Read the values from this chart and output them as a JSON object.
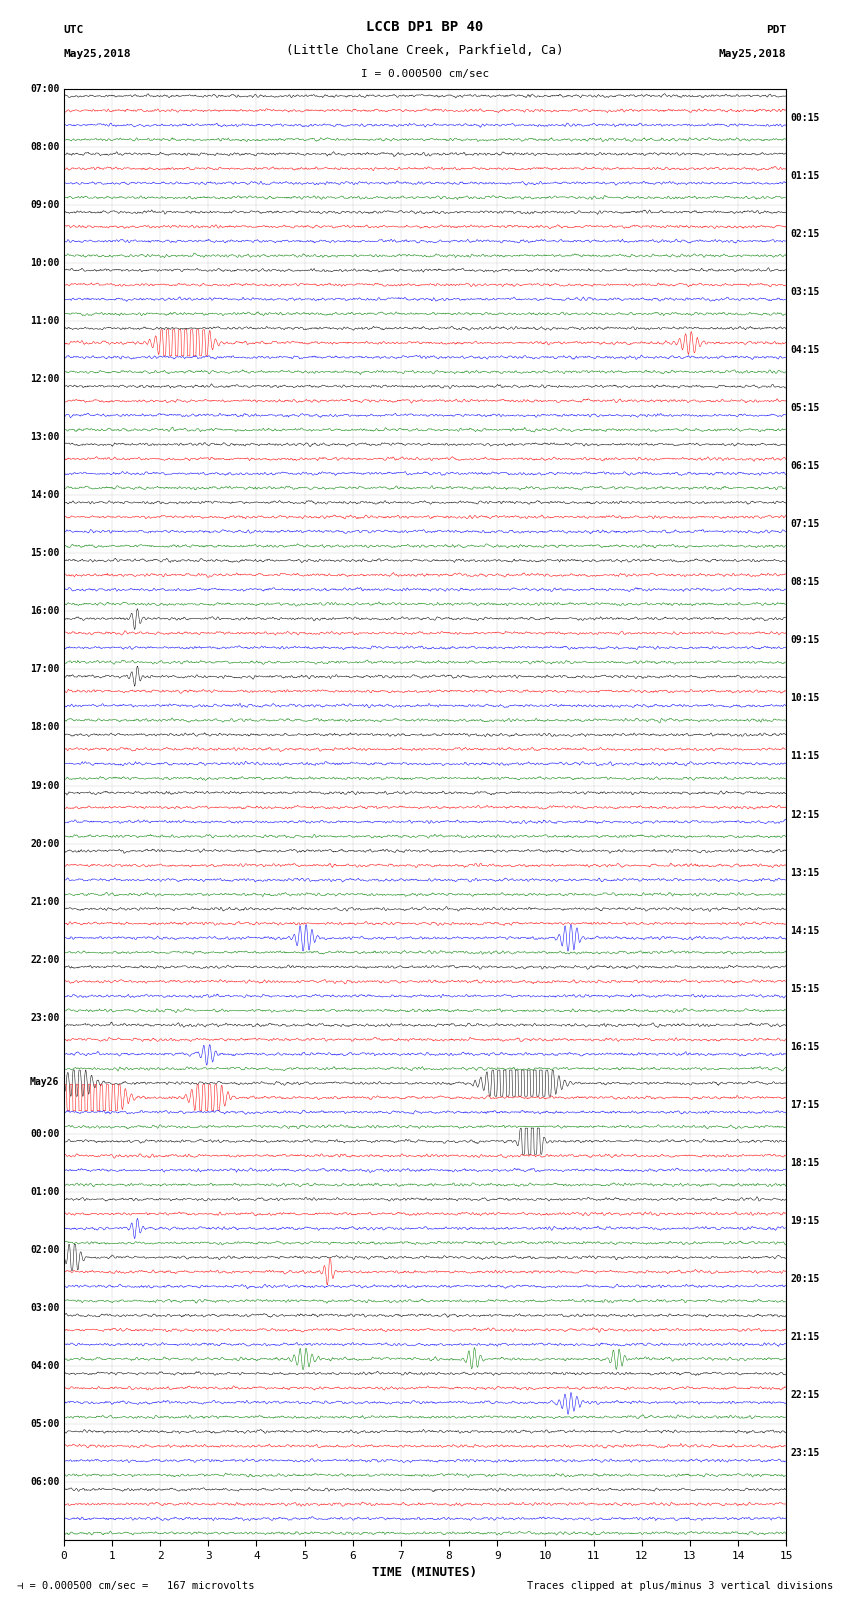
{
  "title_line1": "LCCB DP1 BP 40",
  "title_line2": "(Little Cholane Creek, Parkfield, Ca)",
  "scale_text": "I = 0.000500 cm/sec",
  "utc_label": "UTC",
  "pdt_label": "PDT",
  "date_left": "May25,2018",
  "date_right": "May25,2018",
  "xlabel": "TIME (MINUTES)",
  "footer_left": "= 0.000500 cm/sec =   167 microvolts",
  "footer_right": "Traces clipped at plus/minus 3 vertical divisions",
  "bg_color": "#ffffff",
  "row_colors": [
    "black",
    "red",
    "blue",
    "green"
  ],
  "xlim": [
    0,
    15
  ],
  "xticks": [
    0,
    1,
    2,
    3,
    4,
    5,
    6,
    7,
    8,
    9,
    10,
    11,
    12,
    13,
    14,
    15
  ],
  "left_times": [
    "07:00",
    "08:00",
    "09:00",
    "10:00",
    "11:00",
    "12:00",
    "13:00",
    "14:00",
    "15:00",
    "16:00",
    "17:00",
    "18:00",
    "19:00",
    "20:00",
    "21:00",
    "22:00",
    "23:00",
    "May26",
    "00:00",
    "01:00",
    "02:00",
    "03:00",
    "04:00",
    "05:00",
    "06:00"
  ],
  "right_times": [
    "00:15",
    "01:15",
    "02:15",
    "03:15",
    "04:15",
    "05:15",
    "06:15",
    "07:15",
    "08:15",
    "09:15",
    "10:15",
    "11:15",
    "12:15",
    "13:15",
    "14:15",
    "15:15",
    "16:15",
    "17:15",
    "18:15",
    "19:15",
    "20:15",
    "21:15",
    "22:15",
    "23:15"
  ],
  "num_rows": 25,
  "traces_per_row": 4,
  "gridline_color": "#aaaaaa",
  "gridline_alpha": 0.6
}
